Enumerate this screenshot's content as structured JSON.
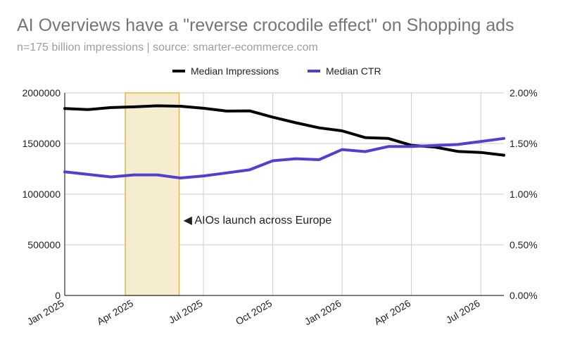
{
  "chart_data": {
    "type": "line",
    "title": "AI Overviews have a \"reverse crocodile effect\" on Shopping ads",
    "subtitle": "n=175 billion impressions | source: smarter-ecommerce.com",
    "x_tick_labels": [
      "Jan 2025",
      "Apr 2025",
      "Jul 2025",
      "Oct 2025",
      "Jan 2026",
      "Apr 2026",
      "Jul 2026"
    ],
    "x": [
      "2025-01",
      "2025-02",
      "2025-03",
      "2025-04",
      "2025-05",
      "2025-06",
      "2025-07",
      "2025-08",
      "2025-09",
      "2025-10",
      "2025-11",
      "2025-12",
      "2026-01",
      "2026-02",
      "2026-03",
      "2026-04",
      "2026-05",
      "2026-06",
      "2026-07",
      "2026-08"
    ],
    "series": [
      {
        "name": "Median Impressions",
        "axis": "left",
        "color": "#000000",
        "values": [
          1845000,
          1835000,
          1855000,
          1862000,
          1872000,
          1868000,
          1848000,
          1820000,
          1822000,
          1760000,
          1705000,
          1655000,
          1625000,
          1558000,
          1550000,
          1482000,
          1465000,
          1422000,
          1412000,
          1385000
        ]
      },
      {
        "name": "Median CTR",
        "axis": "right",
        "color": "#5040d0",
        "values": [
          1.22,
          1.195,
          1.17,
          1.19,
          1.19,
          1.16,
          1.18,
          1.21,
          1.24,
          1.33,
          1.35,
          1.34,
          1.44,
          1.42,
          1.47,
          1.47,
          1.48,
          1.49,
          1.52,
          1.55
        ]
      }
    ],
    "y_left": {
      "ylim": [
        0,
        2000000
      ],
      "ticks": [
        "2000000",
        "1500000",
        "1000000",
        "500000",
        "0"
      ]
    },
    "y_right": {
      "ylim": [
        0,
        2.0
      ],
      "ticks": [
        "2.00%",
        "1.50%",
        "1.00%",
        "0.50%",
        "0.00%"
      ]
    },
    "highlight": {
      "x_start": "2025-03-20",
      "x_end": "2025-05-30",
      "fill": "#f6ecd0",
      "stroke": "#e8b54a",
      "label": "◀ AIOs launch across Europe"
    },
    "grid": true,
    "legend_position": "top-center"
  }
}
